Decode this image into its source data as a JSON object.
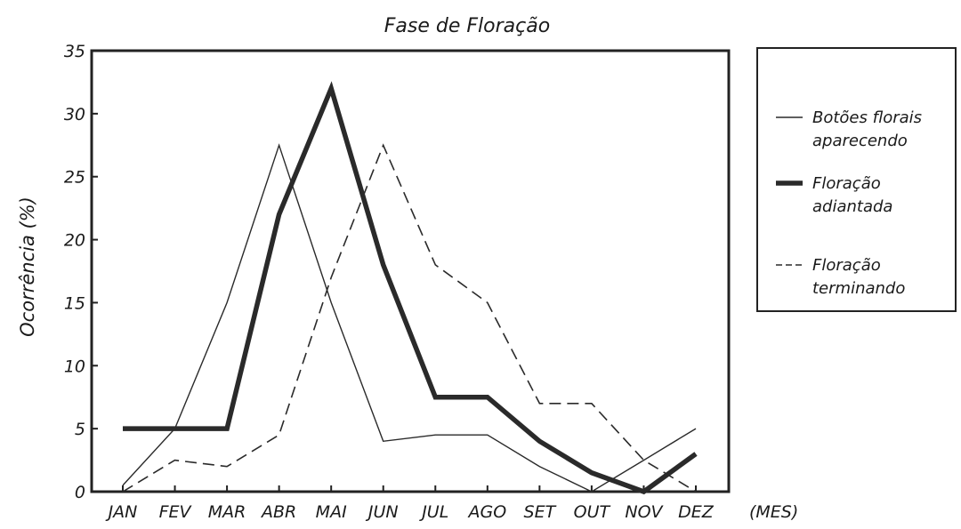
{
  "chart_data": {
    "type": "line",
    "title": "Fase de Floração",
    "ylabel": "Ocorrência (%)",
    "xlabel": "(MES)",
    "categories": [
      "JAN",
      "FEV",
      "MAR",
      "ABR",
      "MAI",
      "JUN",
      "JUL",
      "AGO",
      "SET",
      "OUT",
      "NOV",
      "DEZ"
    ],
    "yticks": [
      "0",
      "5",
      "10",
      "15",
      "20",
      "25",
      "30",
      "35"
    ],
    "ylim": [
      0,
      35
    ],
    "series": [
      {
        "name": "Botões florais aparecendo",
        "style": "thin",
        "values": [
          0.5,
          5,
          15,
          27.5,
          15,
          4,
          4.5,
          4.5,
          2,
          0,
          2.5,
          5
        ]
      },
      {
        "name": "Floração adiantada",
        "style": "thick",
        "values": [
          5,
          5,
          5,
          22,
          32,
          18,
          7.5,
          7.5,
          4,
          1.5,
          0,
          3
        ]
      },
      {
        "name": "Floração terminando",
        "style": "dashed",
        "values": [
          0,
          2.5,
          2,
          4.5,
          17,
          27.5,
          18,
          15,
          7,
          7,
          2.5,
          0
        ]
      }
    ],
    "legend_position": "right",
    "grid": false
  }
}
